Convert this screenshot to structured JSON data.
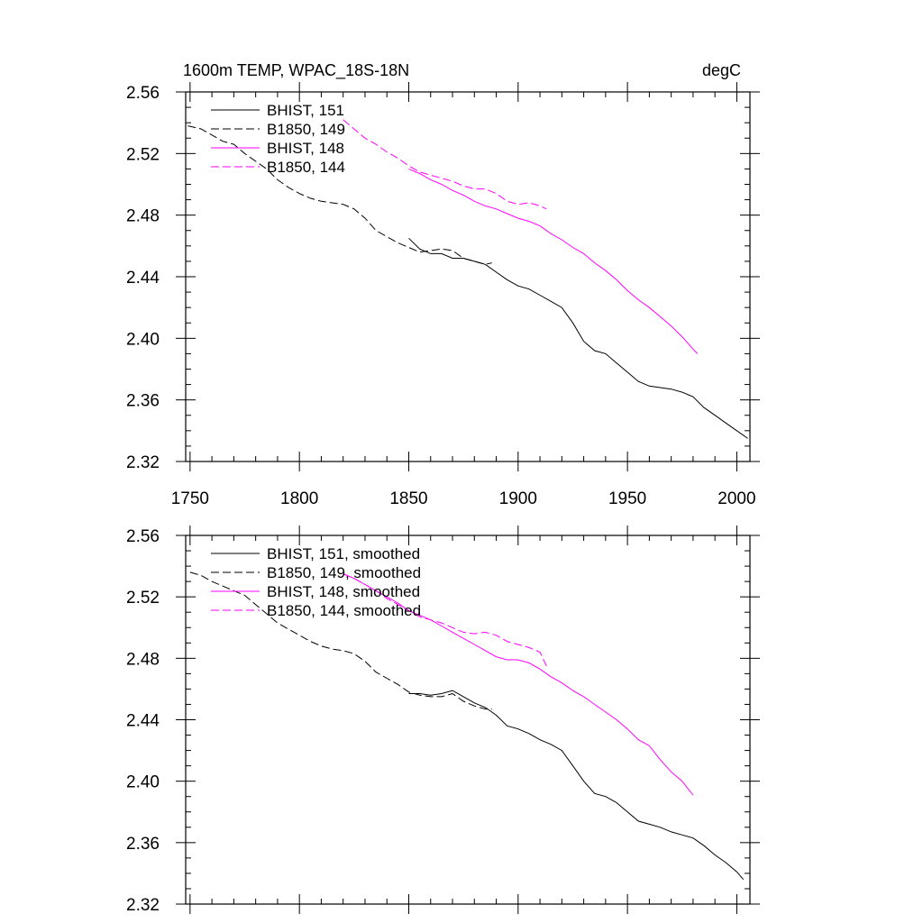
{
  "chart_data": [
    {
      "type": "line",
      "title": "1600m TEMP, WPAC_18S-18N",
      "units": "degC",
      "xlim": [
        1748,
        2006
      ],
      "ylim": [
        2.32,
        2.56
      ],
      "xticks": [
        "1750",
        "1800",
        "1850",
        "1900",
        "1950",
        "2000"
      ],
      "yticks": [
        "2.56",
        "2.52",
        "2.48",
        "2.44",
        "2.40",
        "2.36",
        "2.32"
      ],
      "series": [
        {
          "name": "BHIST, 151",
          "color": "#000000",
          "dash": "solid",
          "x": [
            1850,
            1855,
            1860,
            1865,
            1870,
            1875,
            1880,
            1885,
            1890,
            1895,
            1900,
            1905,
            1910,
            1915,
            1920,
            1925,
            1930,
            1935,
            1940,
            1945,
            1950,
            1955,
            1960,
            1965,
            1970,
            1975,
            1980,
            1985,
            1990,
            1995,
            2000,
            2005
          ],
          "y": [
            2.465,
            2.458,
            2.455,
            2.455,
            2.452,
            2.452,
            2.45,
            2.448,
            2.443,
            2.438,
            2.434,
            2.432,
            2.428,
            2.424,
            2.42,
            2.41,
            2.398,
            2.392,
            2.39,
            2.384,
            2.378,
            2.372,
            2.369,
            2.368,
            2.367,
            2.365,
            2.362,
            2.355,
            2.35,
            2.345,
            2.34,
            2.335
          ]
        },
        {
          "name": "B1850, 149",
          "color": "#000000",
          "dash": "dashed",
          "x": [
            1749,
            1755,
            1760,
            1765,
            1770,
            1775,
            1780,
            1785,
            1790,
            1795,
            1800,
            1805,
            1810,
            1815,
            1820,
            1825,
            1830,
            1835,
            1840,
            1845,
            1850,
            1855,
            1860,
            1865,
            1870,
            1875,
            1880,
            1885,
            1888
          ],
          "y": [
            2.538,
            2.536,
            2.532,
            2.528,
            2.526,
            2.52,
            2.515,
            2.51,
            2.503,
            2.498,
            2.494,
            2.491,
            2.489,
            2.488,
            2.487,
            2.484,
            2.478,
            2.47,
            2.466,
            2.462,
            2.459,
            2.456,
            2.457,
            2.458,
            2.457,
            2.452,
            2.45,
            2.448,
            2.449
          ]
        },
        {
          "name": "BHIST, 148",
          "color": "#ff00ff",
          "dash": "solid",
          "x": [
            1850,
            1855,
            1860,
            1865,
            1870,
            1875,
            1880,
            1885,
            1890,
            1895,
            1900,
            1905,
            1910,
            1915,
            1920,
            1925,
            1930,
            1935,
            1940,
            1945,
            1950,
            1955,
            1960,
            1965,
            1970,
            1975,
            1980,
            1982
          ],
          "y": [
            2.51,
            2.507,
            2.503,
            2.5,
            2.496,
            2.493,
            2.489,
            2.486,
            2.484,
            2.481,
            2.478,
            2.476,
            2.473,
            2.468,
            2.464,
            2.459,
            2.455,
            2.449,
            2.444,
            2.438,
            2.431,
            2.425,
            2.42,
            2.414,
            2.408,
            2.401,
            2.393,
            2.39
          ]
        },
        {
          "name": "B1850, 144",
          "color": "#ff00ff",
          "dash": "dashed",
          "x": [
            1820,
            1825,
            1830,
            1835,
            1840,
            1845,
            1850,
            1855,
            1860,
            1865,
            1870,
            1875,
            1880,
            1885,
            1890,
            1895,
            1900,
            1905,
            1910,
            1913
          ],
          "y": [
            2.542,
            2.536,
            2.53,
            2.526,
            2.521,
            2.517,
            2.512,
            2.508,
            2.506,
            2.504,
            2.502,
            2.499,
            2.497,
            2.497,
            2.494,
            2.489,
            2.487,
            2.488,
            2.486,
            2.484
          ]
        }
      ]
    },
    {
      "type": "line",
      "xlim": [
        1748,
        2006
      ],
      "ylim": [
        2.32,
        2.56
      ],
      "yticks": [
        "2.56",
        "2.52",
        "2.48",
        "2.44",
        "2.40",
        "2.36",
        "2.32"
      ],
      "series": [
        {
          "name": "BHIST, 151, smoothed",
          "color": "#000000",
          "dash": "solid",
          "x": [
            1850,
            1855,
            1860,
            1865,
            1870,
            1875,
            1880,
            1885,
            1890,
            1895,
            1900,
            1905,
            1910,
            1915,
            1920,
            1925,
            1930,
            1935,
            1940,
            1945,
            1950,
            1955,
            1960,
            1965,
            1970,
            1975,
            1980,
            1985,
            1990,
            1995,
            2000,
            2003
          ],
          "y": [
            2.457,
            2.457,
            2.456,
            2.457,
            2.459,
            2.455,
            2.451,
            2.448,
            2.443,
            2.436,
            2.434,
            2.431,
            2.427,
            2.424,
            2.42,
            2.41,
            2.4,
            2.392,
            2.39,
            2.386,
            2.38,
            2.374,
            2.372,
            2.37,
            2.367,
            2.365,
            2.363,
            2.358,
            2.352,
            2.347,
            2.341,
            2.336
          ]
        },
        {
          "name": "B1850, 149, smoothed",
          "color": "#000000",
          "dash": "dashed",
          "x": [
            1750,
            1755,
            1760,
            1765,
            1770,
            1775,
            1780,
            1785,
            1790,
            1795,
            1800,
            1805,
            1810,
            1815,
            1820,
            1825,
            1830,
            1835,
            1840,
            1845,
            1850,
            1855,
            1860,
            1865,
            1870,
            1875,
            1880,
            1885,
            1888
          ],
          "y": [
            2.536,
            2.534,
            2.53,
            2.527,
            2.524,
            2.521,
            2.515,
            2.509,
            2.503,
            2.499,
            2.495,
            2.491,
            2.488,
            2.486,
            2.485,
            2.483,
            2.478,
            2.471,
            2.467,
            2.463,
            2.458,
            2.456,
            2.455,
            2.455,
            2.457,
            2.452,
            2.449,
            2.447,
            2.447
          ]
        },
        {
          "name": "BHIST, 148, smoothed",
          "color": "#ff00ff",
          "dash": "solid",
          "x": [
            1820,
            1825,
            1830,
            1835,
            1840,
            1845,
            1850,
            1855,
            1860,
            1865,
            1870,
            1875,
            1880,
            1885,
            1890,
            1895,
            1900,
            1905,
            1910,
            1915,
            1920,
            1925,
            1930,
            1935,
            1940,
            1945,
            1950,
            1955,
            1960,
            1965,
            1970,
            1975,
            1980
          ],
          "y": [
            2.535,
            2.532,
            2.528,
            2.524,
            2.52,
            2.516,
            2.511,
            2.508,
            2.505,
            2.501,
            2.497,
            2.493,
            2.489,
            2.485,
            2.481,
            2.479,
            2.479,
            2.477,
            2.473,
            2.468,
            2.464,
            2.459,
            2.455,
            2.45,
            2.445,
            2.44,
            2.434,
            2.427,
            2.423,
            2.414,
            2.406,
            2.4,
            2.391
          ]
        },
        {
          "name": "B1850, 144, smoothed",
          "color": "#ff00ff",
          "dash": "dashed",
          "x": [
            1820,
            1825,
            1830,
            1835,
            1840,
            1845,
            1850,
            1855,
            1860,
            1865,
            1870,
            1875,
            1880,
            1885,
            1890,
            1895,
            1900,
            1905,
            1910,
            1913
          ],
          "y": [
            2.535,
            2.532,
            2.528,
            2.524,
            2.519,
            2.515,
            2.511,
            2.507,
            2.505,
            2.503,
            2.5,
            2.497,
            2.496,
            2.497,
            2.495,
            2.491,
            2.489,
            2.487,
            2.484,
            2.475
          ]
        }
      ]
    }
  ]
}
